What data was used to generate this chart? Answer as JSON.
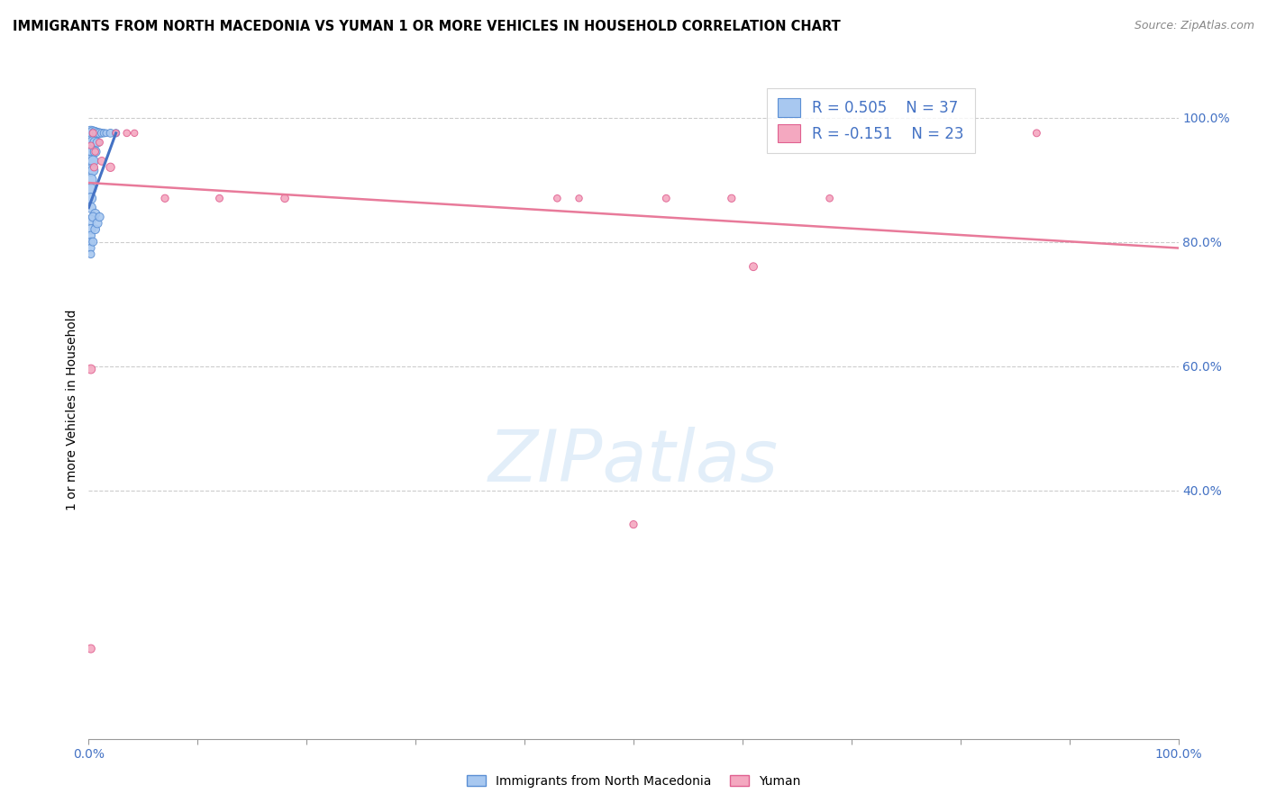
{
  "title": "IMMIGRANTS FROM NORTH MACEDONIA VS YUMAN 1 OR MORE VEHICLES IN HOUSEHOLD CORRELATION CHART",
  "source": "Source: ZipAtlas.com",
  "ylabel": "1 or more Vehicles in Household",
  "legend_label1": "Immigrants from North Macedonia",
  "legend_label2": "Yuman",
  "R1": 0.505,
  "N1": 37,
  "R2": -0.151,
  "N2": 23,
  "blue_color": "#A8C8F0",
  "pink_color": "#F4A8C0",
  "blue_edge_color": "#5B8FD4",
  "pink_edge_color": "#E06090",
  "blue_line_color": "#4472C4",
  "pink_line_color": "#E87A9A",
  "blue_scatter": [
    [
      0.002,
      0.975
    ],
    [
      0.004,
      0.975
    ],
    [
      0.006,
      0.975
    ],
    [
      0.008,
      0.975
    ],
    [
      0.01,
      0.975
    ],
    [
      0.012,
      0.975
    ],
    [
      0.014,
      0.975
    ],
    [
      0.016,
      0.975
    ],
    [
      0.002,
      0.96
    ],
    [
      0.004,
      0.96
    ],
    [
      0.006,
      0.96
    ],
    [
      0.008,
      0.96
    ],
    [
      0.002,
      0.945
    ],
    [
      0.004,
      0.945
    ],
    [
      0.006,
      0.945
    ],
    [
      0.002,
      0.93
    ],
    [
      0.004,
      0.93
    ],
    [
      0.002,
      0.915
    ],
    [
      0.004,
      0.915
    ],
    [
      0.002,
      0.9
    ],
    [
      0.002,
      0.885
    ],
    [
      0.02,
      0.975
    ],
    [
      0.025,
      0.975
    ],
    [
      0.002,
      0.87
    ],
    [
      0.002,
      0.855
    ],
    [
      0.006,
      0.845
    ],
    [
      0.002,
      0.835
    ],
    [
      0.002,
      0.82
    ],
    [
      0.004,
      0.84
    ],
    [
      0.002,
      0.81
    ],
    [
      0.002,
      0.8
    ],
    [
      0.002,
      0.79
    ],
    [
      0.004,
      0.8
    ],
    [
      0.002,
      0.78
    ],
    [
      0.006,
      0.82
    ],
    [
      0.008,
      0.83
    ],
    [
      0.01,
      0.84
    ]
  ],
  "blue_sizes": [
    120,
    100,
    80,
    60,
    50,
    40,
    35,
    30,
    110,
    90,
    70,
    50,
    100,
    80,
    60,
    90,
    70,
    85,
    65,
    80,
    75,
    40,
    35,
    70,
    65,
    55,
    60,
    55,
    50,
    45,
    40,
    38,
    42,
    36,
    48,
    52,
    45
  ],
  "pink_scatter": [
    [
      0.004,
      0.975
    ],
    [
      0.012,
      0.93
    ],
    [
      0.02,
      0.92
    ],
    [
      0.035,
      0.975
    ],
    [
      0.042,
      0.975
    ],
    [
      0.07,
      0.87
    ],
    [
      0.12,
      0.87
    ],
    [
      0.18,
      0.87
    ],
    [
      0.43,
      0.87
    ],
    [
      0.45,
      0.87
    ],
    [
      0.53,
      0.87
    ],
    [
      0.59,
      0.87
    ],
    [
      0.61,
      0.76
    ],
    [
      0.68,
      0.87
    ],
    [
      0.87,
      0.975
    ],
    [
      0.5,
      0.345
    ],
    [
      0.002,
      0.595
    ],
    [
      0.002,
      0.145
    ],
    [
      0.002,
      0.955
    ],
    [
      0.006,
      0.945
    ],
    [
      0.01,
      0.96
    ],
    [
      0.025,
      0.975
    ],
    [
      0.005,
      0.92
    ]
  ],
  "pink_sizes": [
    35,
    40,
    45,
    30,
    28,
    35,
    32,
    38,
    30,
    28,
    32,
    35,
    40,
    30,
    32,
    35,
    50,
    42,
    28,
    30,
    32,
    28,
    35
  ],
  "blue_trendline": [
    [
      0.0,
      0.855
    ],
    [
      0.025,
      0.975
    ]
  ],
  "pink_trendline": [
    [
      0.0,
      0.895
    ],
    [
      1.0,
      0.79
    ]
  ],
  "watermark_text": "ZIPatlas",
  "xlim": [
    0.0,
    1.0
  ],
  "ylim": [
    0.0,
    1.06
  ],
  "yticks": [
    0.4,
    0.6,
    0.8,
    1.0
  ],
  "ytick_labels": [
    "40.0%",
    "60.0%",
    "80.0%",
    "100.0%"
  ],
  "xtick_positions": [
    0.0,
    0.1,
    0.2,
    0.3,
    0.4,
    0.5,
    0.6,
    0.7,
    0.8,
    0.9,
    1.0
  ],
  "title_fontsize": 10.5,
  "source_fontsize": 9,
  "axis_label_color": "#4472C4",
  "background_color": "#FFFFFF"
}
